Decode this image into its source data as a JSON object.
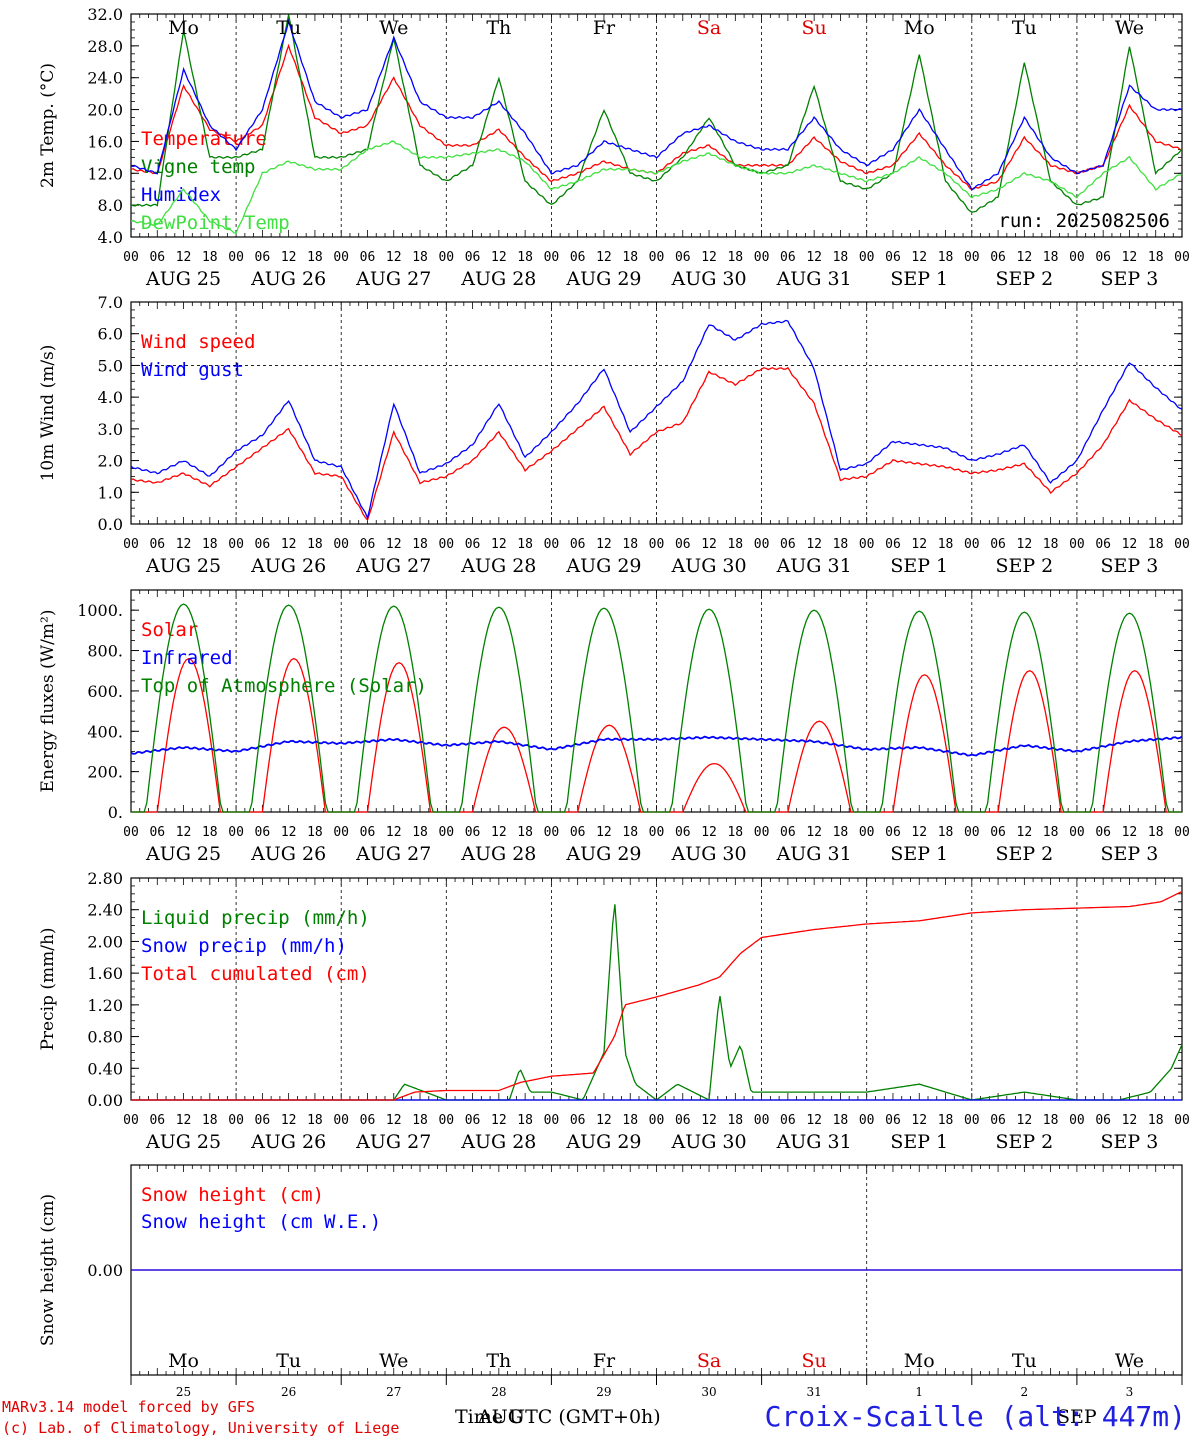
{
  "x_axis": {
    "start": "2025-08-25 00UTC",
    "end": "2025-09-04 00UTC",
    "hour_ticks": [
      "00",
      "06",
      "12",
      "18"
    ],
    "date_labels": [
      "AUG 25",
      "AUG 26",
      "AUG 27",
      "AUG 28",
      "AUG 29",
      "AUG 30",
      "AUG 31",
      "SEP  1",
      "SEP  2",
      "SEP  3"
    ],
    "weekdays": [
      "Mo",
      "Tu",
      "We",
      "Th",
      "Fr",
      "Sa",
      "Su",
      "Mo",
      "Tu",
      "We"
    ],
    "weekend_color": "#e00000",
    "weekend_days": [
      5,
      6
    ],
    "day_numbers": [
      "25",
      "26",
      "27",
      "28",
      "29",
      "30",
      "31",
      "1",
      "2",
      "3"
    ]
  },
  "run_label": "run: 2025082506",
  "footer": {
    "model": "MARv3.14 model forced by GFS",
    "lab": "(c) Lab. of Climatology, University of Liege",
    "station": "Croix-Scaille (alt: 447m)",
    "time_label": "Time UTC (GMT+0h)",
    "month_label": "AUG",
    "month_label2": "SEP"
  },
  "chart_data": [
    {
      "type": "line",
      "ylabel": "2m Temp. (°C)",
      "ylim": [
        4,
        32
      ],
      "yticks": [
        "4.0",
        "8.0",
        "12.0",
        "16.0",
        "20.0",
        "24.0",
        "28.0",
        "32.0"
      ],
      "series": [
        {
          "name": "Temperature",
          "color": "#ff0000",
          "x": [
            0,
            0.25,
            0.5,
            0.75,
            1,
            1.25,
            1.5,
            1.75,
            2,
            2.25,
            2.5,
            2.75,
            3,
            3.25,
            3.5,
            3.75,
            4,
            4.25,
            4.5,
            4.75,
            5,
            5.25,
            5.5,
            5.75,
            6,
            6.25,
            6.5,
            6.75,
            7,
            7.25,
            7.5,
            7.75,
            8,
            8.25,
            8.5,
            8.75,
            9,
            9.25,
            9.5,
            9.75,
            10
          ],
          "values": [
            12.5,
            12,
            23,
            17.5,
            16,
            18,
            28,
            19,
            17,
            18,
            24,
            18,
            15.5,
            15.5,
            17.5,
            14,
            11,
            12,
            13.5,
            12.5,
            12,
            14.5,
            15.5,
            13,
            13,
            13,
            16.5,
            13.5,
            12,
            13,
            17,
            13,
            10,
            11,
            16.5,
            13,
            12,
            13,
            20.5,
            16,
            15
          ]
        },
        {
          "name": "Vigne temp",
          "color": "#008000",
          "x": [
            0,
            0.25,
            0.5,
            0.75,
            1,
            1.25,
            1.5,
            1.75,
            2,
            2.25,
            2.5,
            2.75,
            3,
            3.25,
            3.5,
            3.75,
            4,
            4.25,
            4.5,
            4.75,
            5,
            5.25,
            5.5,
            5.75,
            6,
            6.25,
            6.5,
            6.75,
            7,
            7.25,
            7.5,
            7.75,
            8,
            8.25,
            8.5,
            8.75,
            9,
            9.25,
            9.5,
            9.75,
            10
          ],
          "values": [
            8,
            8,
            30,
            14,
            14,
            15,
            32,
            14,
            14,
            15,
            29,
            13,
            11,
            13,
            24,
            11,
            8,
            11,
            20,
            12,
            11,
            14,
            19,
            13,
            12,
            13,
            23,
            11,
            10,
            12,
            27,
            11,
            7,
            9,
            26,
            11,
            8,
            9,
            28,
            12,
            15
          ]
        },
        {
          "name": "Humidex",
          "color": "#0000ff",
          "x": [
            0,
            0.25,
            0.5,
            0.75,
            1,
            1.25,
            1.5,
            1.75,
            2,
            2.25,
            2.5,
            2.75,
            3,
            3.25,
            3.5,
            3.75,
            4,
            4.25,
            4.5,
            4.75,
            5,
            5.25,
            5.5,
            5.75,
            6,
            6.25,
            6.5,
            6.75,
            7,
            7.25,
            7.5,
            7.75,
            8,
            8.25,
            8.5,
            8.75,
            9,
            9.25,
            9.5,
            9.75,
            10
          ],
          "values": [
            13,
            12,
            25,
            18,
            15,
            20,
            31,
            21,
            19,
            20,
            29,
            21,
            19,
            19,
            21,
            17,
            12,
            13,
            16,
            15,
            14,
            17,
            18,
            16,
            15,
            15,
            19,
            15,
            13,
            15,
            20,
            15,
            10,
            12,
            19,
            14,
            12,
            13,
            23,
            20,
            20
          ]
        },
        {
          "name": "DewPoint Temp",
          "color": "#40e040",
          "x": [
            0,
            0.25,
            0.5,
            0.75,
            1,
            1.25,
            1.5,
            1.75,
            2,
            2.25,
            2.5,
            2.75,
            3,
            3.25,
            3.5,
            3.75,
            4,
            4.25,
            4.5,
            4.75,
            5,
            5.25,
            5.5,
            5.75,
            6,
            6.25,
            6.5,
            6.75,
            7,
            7.25,
            7.5,
            7.75,
            8,
            8.25,
            8.5,
            8.75,
            9,
            9.25,
            9.5,
            9.75,
            10
          ],
          "values": [
            6,
            5.5,
            10,
            6,
            4.5,
            12,
            13.5,
            12.5,
            12.5,
            15,
            16,
            14,
            14,
            14.5,
            15,
            13.5,
            10,
            11,
            12.5,
            12.5,
            12,
            13.5,
            14.5,
            13,
            12,
            12,
            13,
            12,
            11,
            12,
            14,
            12,
            9,
            10,
            12,
            11,
            9,
            12,
            14,
            10,
            12
          ]
        }
      ],
      "legend_placement": "left"
    },
    {
      "type": "line",
      "ylabel": "10m Wind (m/s)",
      "ylim": [
        0,
        7
      ],
      "yticks": [
        "0.0",
        "1.0",
        "2.0",
        "3.0",
        "4.0",
        "5.0",
        "6.0",
        "7.0"
      ],
      "ref_line": 5,
      "series": [
        {
          "name": "Wind speed",
          "color": "#ff0000",
          "x": [
            0,
            0.25,
            0.5,
            0.75,
            1,
            1.25,
            1.5,
            1.75,
            2,
            2.25,
            2.5,
            2.75,
            3,
            3.25,
            3.5,
            3.75,
            4,
            4.25,
            4.5,
            4.75,
            5,
            5.25,
            5.5,
            5.75,
            6,
            6.25,
            6.5,
            6.75,
            7,
            7.25,
            7.5,
            7.75,
            8,
            8.25,
            8.5,
            8.75,
            9,
            9.25,
            9.5,
            9.75,
            10
          ],
          "values": [
            1.4,
            1.3,
            1.6,
            1.2,
            1.8,
            2.4,
            3.0,
            1.6,
            1.5,
            0.1,
            2.9,
            1.3,
            1.5,
            2.0,
            2.9,
            1.7,
            2.3,
            3.0,
            3.7,
            2.2,
            2.9,
            3.2,
            4.8,
            4.4,
            4.9,
            4.9,
            3.8,
            1.4,
            1.5,
            2.0,
            1.9,
            1.8,
            1.6,
            1.7,
            1.9,
            1.0,
            1.6,
            2.5,
            3.9,
            3.3,
            2.8
          ]
        },
        {
          "name": "Wind gust",
          "color": "#0000ff",
          "x": [
            0,
            0.25,
            0.5,
            0.75,
            1,
            1.25,
            1.5,
            1.75,
            2,
            2.25,
            2.5,
            2.75,
            3,
            3.25,
            3.5,
            3.75,
            4,
            4.25,
            4.5,
            4.75,
            5,
            5.25,
            5.5,
            5.75,
            6,
            6.25,
            6.5,
            6.75,
            7,
            7.25,
            7.5,
            7.75,
            8,
            8.25,
            8.5,
            8.75,
            9,
            9.25,
            9.5,
            9.75,
            10
          ],
          "values": [
            1.8,
            1.6,
            2.0,
            1.5,
            2.3,
            2.8,
            3.9,
            2.0,
            1.8,
            0.2,
            3.8,
            1.6,
            1.9,
            2.5,
            3.8,
            2.1,
            2.9,
            3.8,
            4.9,
            2.9,
            3.7,
            4.5,
            6.3,
            5.8,
            6.3,
            6.4,
            4.9,
            1.7,
            1.9,
            2.6,
            2.5,
            2.4,
            2.0,
            2.2,
            2.5,
            1.3,
            2.0,
            3.6,
            5.1,
            4.3,
            3.6
          ]
        }
      ],
      "legend_placement": "top-left"
    },
    {
      "type": "line",
      "ylabel": "Energy fluxes (W/m²)",
      "ylim": [
        0,
        1100
      ],
      "yticks": [
        "0.",
        "200.",
        "400.",
        "600.",
        "800.",
        "1000."
      ],
      "series": [
        {
          "name": "Solar",
          "color": "#ff0000",
          "peaks": [
            760,
            760,
            740,
            420,
            430,
            240,
            450,
            680,
            700,
            700
          ],
          "noon_offset": 0.55
        },
        {
          "name": "Infrared",
          "color": "#0000ff",
          "x": [
            0,
            0.5,
            1,
            1.5,
            2,
            2.5,
            3,
            3.5,
            4,
            4.5,
            5,
            5.5,
            6,
            6.5,
            7,
            7.5,
            8,
            8.5,
            9,
            9.5,
            10
          ],
          "values": [
            290,
            320,
            300,
            350,
            340,
            360,
            330,
            350,
            310,
            360,
            360,
            370,
            360,
            350,
            310,
            320,
            280,
            330,
            300,
            350,
            370
          ]
        },
        {
          "name": "Top of Atmosphere (Solar)",
          "color": "#008000",
          "peaks": [
            1030,
            1025,
            1020,
            1015,
            1010,
            1005,
            1000,
            995,
            990,
            985
          ],
          "noon_offset": 0.5
        }
      ],
      "legend_placement": "top-left"
    },
    {
      "type": "line",
      "ylabel": "Precip (mm/h)",
      "ylim": [
        0,
        2.8
      ],
      "yticks": [
        "0.00",
        "0.40",
        "0.80",
        "1.20",
        "1.60",
        "2.00",
        "2.40",
        "2.80"
      ],
      "series": [
        {
          "name": "Liquid precip (mm/h)",
          "color": "#008000",
          "x": [
            0,
            2.5,
            2.6,
            2.8,
            3.0,
            3.6,
            3.7,
            3.8,
            4.0,
            4.3,
            4.5,
            4.6,
            4.7,
            4.8,
            5.0,
            5.2,
            5.5,
            5.6,
            5.7,
            5.8,
            5.9,
            6.0,
            6.5,
            7.0,
            7.5,
            8.0,
            8.5,
            9.0,
            9.4,
            9.7,
            9.9,
            10
          ],
          "values": [
            0,
            0,
            0.2,
            0.1,
            0,
            0,
            0.4,
            0.1,
            0.1,
            0,
            0.6,
            2.55,
            0.6,
            0.2,
            0,
            0.2,
            0,
            1.35,
            0.4,
            0.7,
            0.1,
            0.1,
            0.1,
            0.1,
            0.2,
            0,
            0.1,
            0,
            0,
            0.1,
            0.4,
            0.7
          ]
        },
        {
          "name": "Snow precip (mm/h)",
          "color": "#0000ff",
          "x": [
            0,
            10
          ],
          "values": [
            0,
            0
          ]
        },
        {
          "name": "Total cumulated (cm)",
          "color": "#ff0000",
          "x": [
            0,
            2.5,
            2.7,
            3.0,
            3.5,
            3.7,
            4.0,
            4.4,
            4.6,
            4.7,
            5.0,
            5.4,
            5.6,
            5.8,
            6.0,
            6.5,
            7.0,
            7.5,
            8.0,
            8.5,
            9.0,
            9.5,
            9.8,
            10
          ],
          "values": [
            0,
            0,
            0.1,
            0.12,
            0.12,
            0.22,
            0.3,
            0.34,
            0.8,
            1.2,
            1.3,
            1.45,
            1.55,
            1.85,
            2.05,
            2.15,
            2.22,
            2.26,
            2.36,
            2.4,
            2.42,
            2.44,
            2.5,
            2.63
          ]
        }
      ],
      "legend_placement": "top-left"
    },
    {
      "type": "line",
      "ylabel": "Snow height (cm)",
      "ylim": [
        -1,
        1
      ],
      "yticks": [
        "0.00"
      ],
      "series": [
        {
          "name": "Snow height (cm)",
          "color": "#ff0000",
          "x": [
            0,
            10
          ],
          "values": [
            0,
            0
          ]
        },
        {
          "name": "Snow height (cm W.E.)",
          "color": "#0000ff",
          "x": [
            0,
            10
          ],
          "values": [
            0,
            0
          ]
        }
      ],
      "legend_placement": "top-left"
    }
  ]
}
